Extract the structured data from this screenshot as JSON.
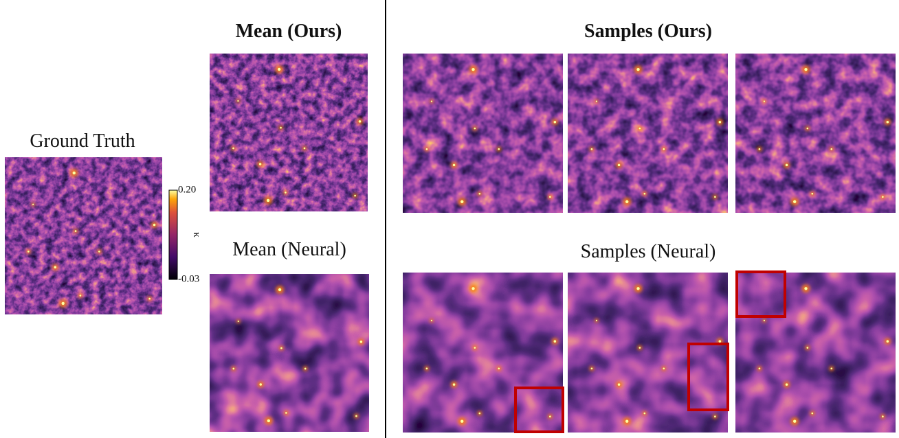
{
  "panels": {
    "ground_truth": "Ground Truth",
    "mean_ours": "Mean (Ours)",
    "mean_neural": "Mean (Neural)",
    "samples_ours": "Samples (Ours)",
    "samples_neural": "Samples (Neural)"
  },
  "colorbar": {
    "label": "κ",
    "lim": [
      -0.03,
      0.2
    ],
    "ticks": [
      {
        "value": 0.2,
        "label": "0.20"
      },
      -0.03
    ]
  }
}
